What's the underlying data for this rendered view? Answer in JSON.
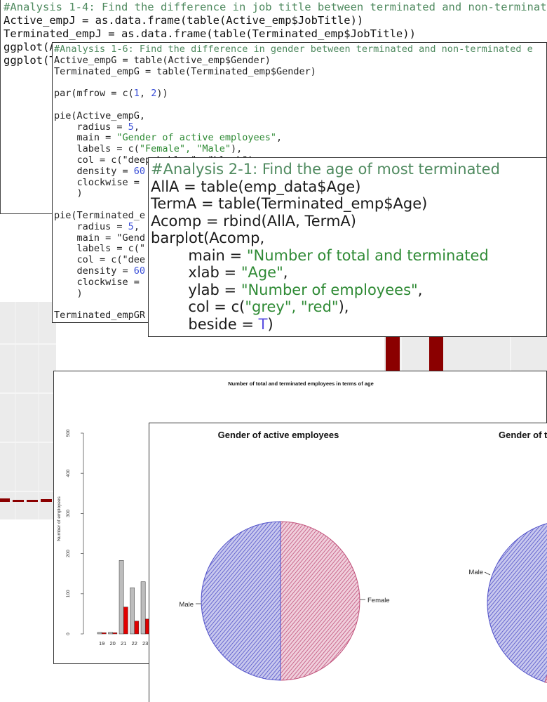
{
  "panel1": {
    "lines": [
      "#Analysis 1-4: Find the difference in job title between terminated and non-terminated",
      "Active_empJ = as.data.frame(table(Active_emp$JobTitle))",
      "Terminated_empJ = as.data.frame(table(Terminated_emp$JobTitle))",
      "",
      "ggplot(A",
      "",
      "",
      "",
      "",
      "",
      "ggplot(T"
    ]
  },
  "panel3": {
    "comment": "#Analysis 1-6: Find the difference in gender between terminated and non-terminated e",
    "line1": "Active_empG = table(Active_emp$Gender)",
    "line2": "Terminated_empG = table(Terminated_emp$Gender)",
    "par_prefix": "par(mfrow = c(",
    "par_a": "1",
    "par_sep": ", ",
    "par_b": "2",
    "par_suffix": "))",
    "pie1": "pie(Active_empG,",
    "radius_prefix": "    radius = ",
    "radius_val": "5",
    "radius_suffix": ",",
    "main_prefix": "    main = ",
    "main_val": "\"Gender of active employees\"",
    "main_suffix": ",",
    "labels_prefix": "    labels = c(",
    "labels_val": "\"Female\", \"Male\"",
    "labels_suffix": "),",
    "col_line": "    col = c(\"deepskyblue\", \"black\"),",
    "density_prefix": "    density = ",
    "density_val": "60",
    "clockwise_line": "    clockwise = ",
    "close1": "    )",
    "pie2": "pie(Terminated_e",
    "radius2_prefix": "    radius = ",
    "radius2_val": "5",
    "radius2_suffix": ",",
    "main2": "    main = \"Gend",
    "labels2": "    labels = c(\"",
    "col2": "    col = c(\"dee",
    "density2_prefix": "    density = ",
    "density2_val": "60",
    "clockwise2": "    clockwise = ",
    "close2": "    )",
    "last": "Terminated_empGR"
  },
  "panel4": {
    "comment": "#Analysis 2-1: Find the age of most terminated",
    "line1": "AllA = table(emp_data$Age)",
    "line2": "TermA = table(Terminated_emp$Age)",
    "line3": "Acomp = rbind(AllA, TermA)",
    "line4": "barplot(Acomp,",
    "main_prefix": "        main = ",
    "main_val": "\"Number of total and terminated",
    "xlab_prefix": "        xlab = ",
    "xlab_val": "\"Age\"",
    "xlab_suffix": ",",
    "ylab_prefix": "        ylab = ",
    "ylab_val": "\"Number of employees\"",
    "ylab_suffix": ",",
    "col_prefix": "        col = c(",
    "col_val": "\"grey\", \"red\"",
    "col_suffix": "),",
    "beside_prefix": "        beside = ",
    "beside_val": "T",
    "beside_suffix": ")"
  },
  "chart_data": [
    {
      "type": "bar",
      "title": "Number of total and terminated employees in terms of age",
      "xlabel": "",
      "ylabel": "Number of employees",
      "ylim": [
        0,
        500
      ],
      "yticks": [
        "0",
        "100",
        "200",
        "300",
        "400",
        "500"
      ],
      "categories": [
        "19",
        "20",
        "21",
        "22",
        "23"
      ],
      "series": [
        {
          "values": [
            4,
            4,
            183,
            115,
            130
          ]
        },
        {
          "values": [
            3,
            3,
            67,
            32,
            37
          ]
        }
      ],
      "colors": [
        "#bdbdbd",
        "#e00000"
      ]
    },
    {
      "type": "pie",
      "title": "Gender of active employees",
      "labels": [
        "Female",
        "Male"
      ],
      "values": [
        50,
        50
      ],
      "colors": [
        "#c0507a",
        "#5050c8"
      ]
    },
    {
      "type": "pie",
      "title": "Gender of te",
      "labels": [
        "Male"
      ],
      "values": [
        100
      ],
      "colors": [
        "#5050c8"
      ]
    }
  ]
}
